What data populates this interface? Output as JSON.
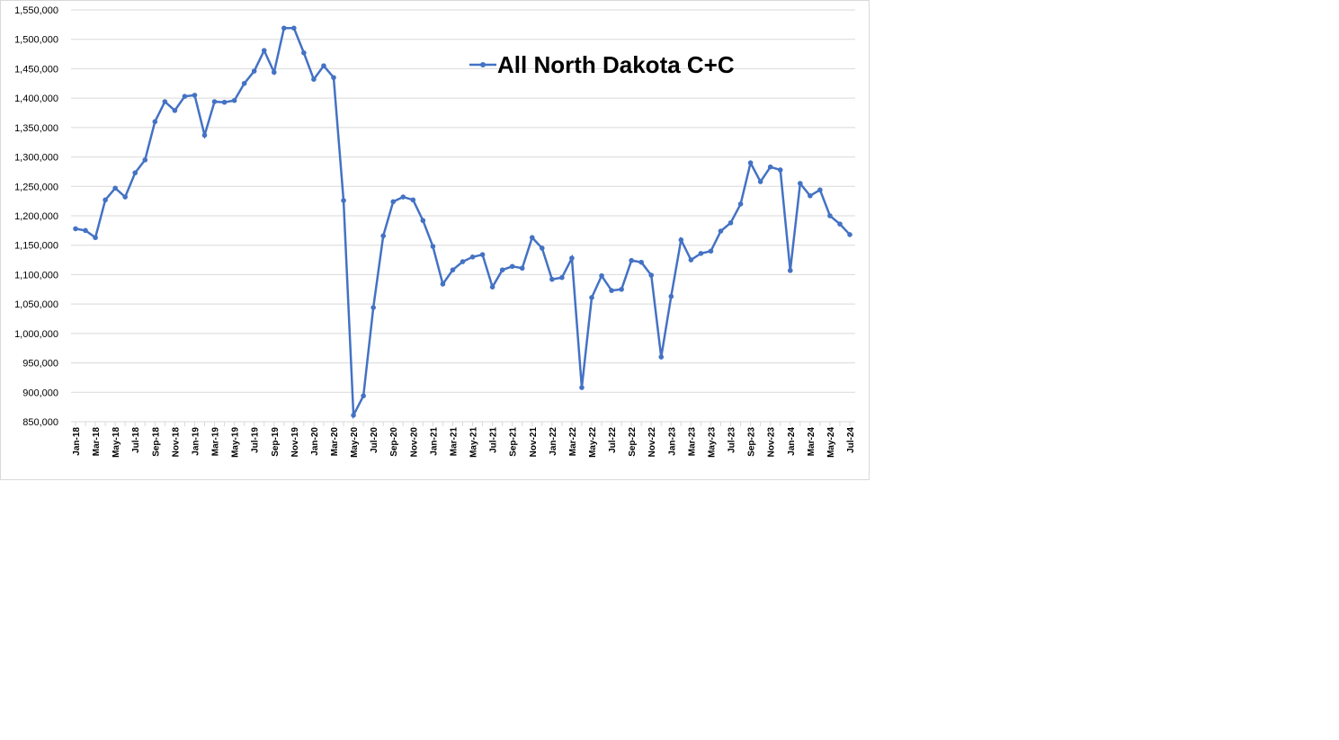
{
  "chart_data": {
    "type": "line",
    "categories": [
      "Jan-18",
      null,
      "Mar-18",
      null,
      "May-18",
      null,
      "Jul-18",
      null,
      "Sep-18",
      null,
      "Nov-18",
      null,
      "Jan-19",
      null,
      "Mar-19",
      null,
      "May-19",
      null,
      "Jul-19",
      null,
      "Sep-19",
      null,
      "Nov-19",
      null,
      "Jan-20",
      null,
      "Mar-20",
      null,
      "May-20",
      null,
      "Jul-20",
      null,
      "Sep-20",
      null,
      "Nov-20",
      null,
      "Jan-21",
      null,
      "Mar-21",
      null,
      "May-21",
      null,
      "Jul-21",
      null,
      "Sep-21",
      null,
      "Nov-21",
      null,
      "Jan-22",
      null,
      "Mar-22",
      null,
      "May-22",
      null,
      "Jul-22",
      null,
      "Sep-22",
      null,
      "Nov-22",
      null,
      "Jan-23",
      null,
      "Mar-23",
      null,
      "May-23",
      null,
      "Jul-23",
      null,
      "Sep-23",
      null,
      "Nov-23",
      null,
      "Jan-24",
      null,
      "Mar-24",
      null,
      "May-24",
      null,
      "Jul-24"
    ],
    "series": [
      {
        "name": "All North Dakota C+C",
        "color": "#4472c4",
        "values": [
          1178000,
          1175000,
          1163000,
          1227000,
          1247000,
          1232000,
          1273000,
          1295000,
          1360000,
          1394000,
          1379000,
          1403000,
          1405000,
          1337000,
          1394000,
          1393000,
          1396000,
          1425000,
          1446000,
          1481000,
          1444000,
          1519000,
          1519000,
          1477000,
          1432000,
          1455000,
          1435000,
          1226000,
          861000,
          894000,
          1044000,
          1166000,
          1224000,
          1232000,
          1227000,
          1192000,
          1148000,
          1084000,
          1108000,
          1122000,
          1130000,
          1134000,
          1079000,
          1108000,
          1114000,
          1111000,
          1163000,
          1145000,
          1092000,
          1095000,
          1128000,
          908000,
          1061000,
          1098000,
          1073000,
          1075000,
          1124000,
          1121000,
          1099000,
          960000,
          1063000,
          1159000,
          1125000,
          1136000,
          1140000,
          1174000,
          1188000,
          1220000,
          1290000,
          1258000,
          1283000,
          1278000,
          1107000,
          1255000,
          1234000,
          1244000,
          1200000,
          1186000,
          1168000
        ]
      }
    ],
    "ylim": [
      850000,
      1550000
    ],
    "yticks": [
      {
        "value": 850000,
        "label": "850,000"
      },
      {
        "value": 900000,
        "label": "900,000"
      },
      {
        "value": 950000,
        "label": "950,000"
      },
      {
        "value": 1000000,
        "label": "1,000,000"
      },
      {
        "value": 1050000,
        "label": "1,050,000"
      },
      {
        "value": 1100000,
        "label": "1,100,000"
      },
      {
        "value": 1150000,
        "label": "1,150,000"
      },
      {
        "value": 1200000,
        "label": "1,200,000"
      },
      {
        "value": 1250000,
        "label": "1,250,000"
      },
      {
        "value": 1300000,
        "label": "1,300,000"
      },
      {
        "value": 1350000,
        "label": "1,350,000"
      },
      {
        "value": 1400000,
        "label": "1,400,000"
      },
      {
        "value": 1450000,
        "label": "1,450,000"
      },
      {
        "value": 1500000,
        "label": "1,500,000"
      },
      {
        "value": 1550000,
        "label": "1,550,000"
      }
    ],
    "grid": true
  }
}
